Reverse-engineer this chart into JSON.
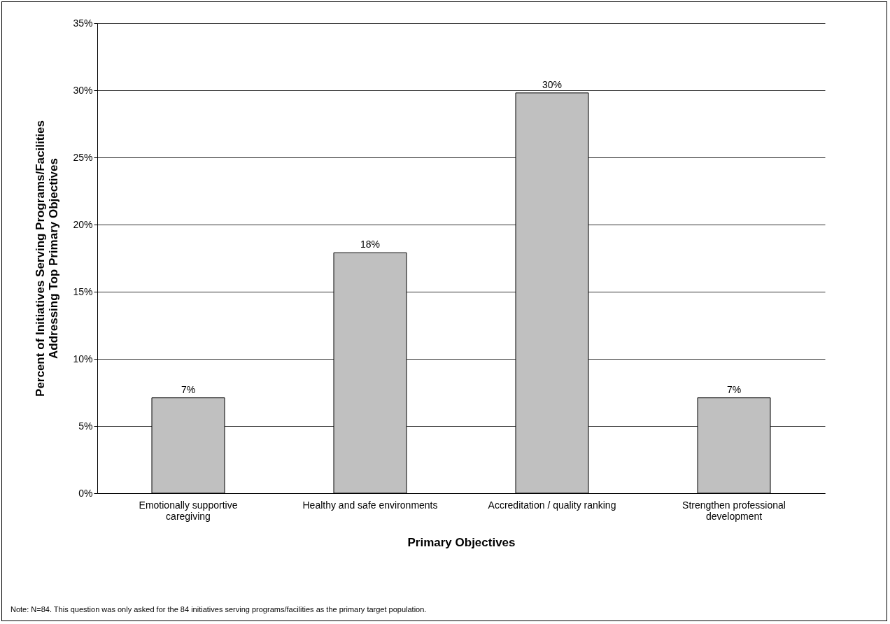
{
  "chart_data": {
    "type": "bar",
    "xlabel": "Primary Objectives",
    "ylabel": "Percent of Initiatives Serving Programs/Facilities Addressing Top Primary Objectives",
    "categories": [
      "Emotionally supportive caregiving",
      "Healthy and safe environments",
      "Accreditation / quality ranking",
      "Strengthen professional development"
    ],
    "values": [
      7.1,
      17.9,
      29.8,
      7.1
    ],
    "value_labels": [
      "7%",
      "18%",
      "30%",
      "7%"
    ],
    "color": "#c0c0c0",
    "ylim": [
      0,
      35
    ],
    "yticks": [
      {
        "value": 0,
        "label": "0%"
      },
      {
        "value": 5,
        "label": "5%"
      },
      {
        "value": 10,
        "label": "10%"
      },
      {
        "value": 15,
        "label": "15%"
      },
      {
        "value": 20,
        "label": "20%"
      },
      {
        "value": 25,
        "label": "25%"
      },
      {
        "value": 30,
        "label": "30%"
      },
      {
        "value": 35,
        "label": "35%"
      }
    ],
    "grid": "y",
    "annotations": [
      "Note: N=84. This question was only asked for the 84 initiatives serving programs/facilities as the primary target population."
    ]
  }
}
